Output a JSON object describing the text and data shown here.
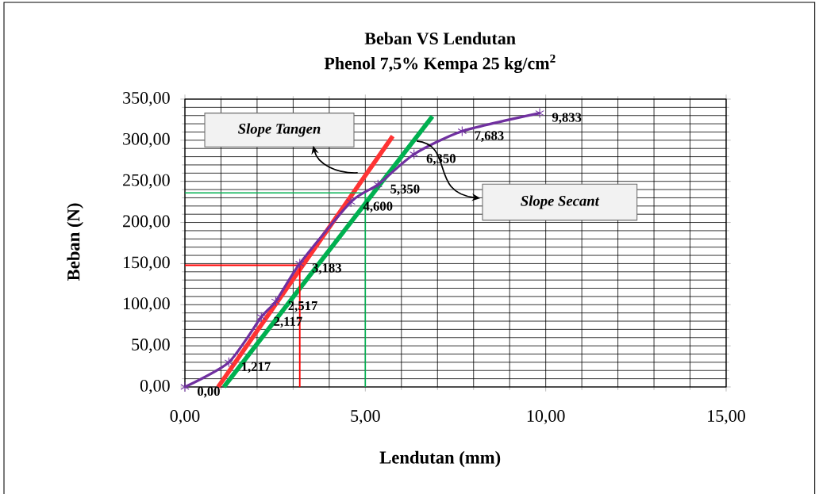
{
  "chart_data": {
    "type": "line",
    "title": "Beban VS Lendutan",
    "subtitle": "Phenol 7,5% Kempa 25 kg/cm$^{2}$",
    "xlabel": "Lendutan (mm)",
    "ylabel": "Beban (N)",
    "xlim": [
      0,
      15
    ],
    "ylim": [
      0,
      350
    ],
    "xticks": [
      {
        "value": 0,
        "label": "0,00"
      },
      {
        "value": 5,
        "label": "5,00"
      },
      {
        "value": 10,
        "label": "10,00"
      },
      {
        "value": 15,
        "label": "15,00"
      }
    ],
    "yticks": [
      {
        "value": 0,
        "label": "0,00"
      },
      {
        "value": 50,
        "label": "50,00"
      },
      {
        "value": 100,
        "label": "100,00"
      },
      {
        "value": 150,
        "label": "150,00"
      },
      {
        "value": 200,
        "label": "200,00"
      },
      {
        "value": 250,
        "label": "250,00"
      },
      {
        "value": 300,
        "label": "300,00"
      },
      {
        "value": 350,
        "label": "350,00"
      }
    ],
    "grid": true,
    "annotations": [
      "Slope Tangen",
      "Slope Secant",
      {
        "text": "0,00",
        "x": 0,
        "y": 0
      },
      {
        "text": "1,217",
        "x": 1.217,
        "y": 30
      },
      {
        "text": "2,117",
        "x": 2.117,
        "y": 85
      },
      {
        "text": "2,517",
        "x": 2.517,
        "y": 104
      },
      {
        "text": "3,183",
        "x": 3.183,
        "y": 150
      },
      {
        "text": "4,600",
        "x": 4.6,
        "y": 225
      },
      {
        "text": "5,350",
        "x": 5.35,
        "y": 246
      },
      {
        "text": "6,350",
        "x": 6.35,
        "y": 283
      },
      {
        "text": "7,683",
        "x": 7.683,
        "y": 311
      },
      {
        "text": "9,833",
        "x": 9.833,
        "y": 333
      }
    ],
    "series": [
      {
        "color": "#7030a0",
        "marker": "cross",
        "x": [
          0,
          1.217,
          2.117,
          2.517,
          3.183,
          4.6,
          5.35,
          6.35,
          7.683,
          9.833
        ],
        "values": [
          0,
          30,
          85,
          104,
          150,
          225,
          246,
          283,
          311,
          333
        ]
      },
      {
        "color": "#ff3333",
        "x": [
          0.92,
          5.76
        ],
        "values": [
          0,
          305
        ]
      },
      {
        "color": "#00b050",
        "x": [
          1.08,
          6.86
        ],
        "values": [
          0,
          329
        ]
      },
      {
        "color": "#ff0000",
        "x": [
          0,
          3.183,
          3.183
        ],
        "values": [
          148,
          148,
          0
        ]
      },
      {
        "color": "#00b050",
        "x": [
          0,
          5,
          5
        ],
        "values": [
          236,
          236,
          0
        ]
      }
    ]
  }
}
